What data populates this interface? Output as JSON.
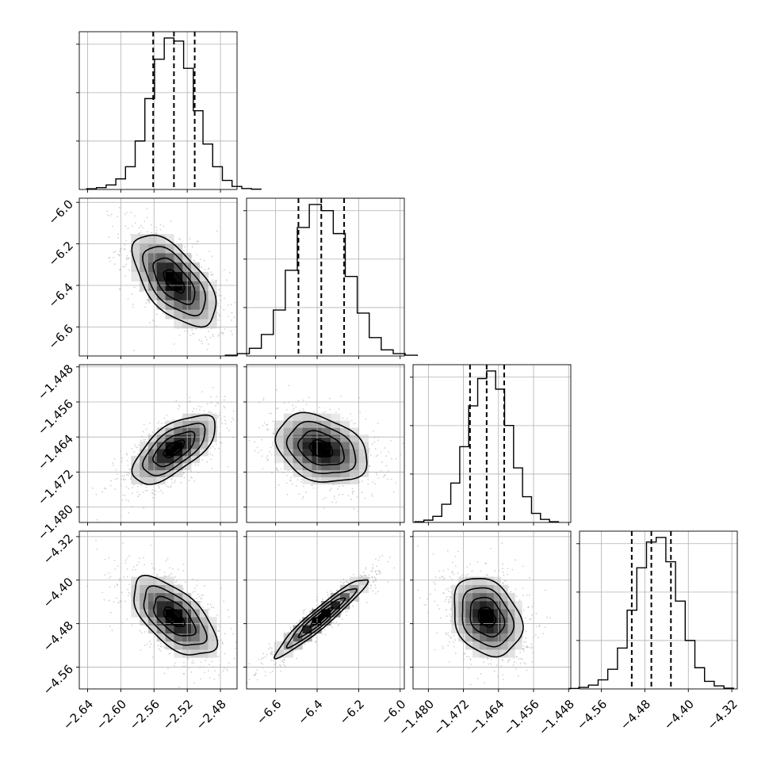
{
  "chart_data": {
    "type": "corner",
    "grid": true,
    "parameters": [
      {
        "range": [
          -2.65,
          -2.46
        ],
        "ticks": [
          -2.64,
          -2.6,
          -2.56,
          -2.52,
          -2.48
        ],
        "tick_labels": [
          "−2.64",
          "−2.60",
          "−2.56",
          "−2.52",
          "−2.48"
        ],
        "quantiles": [
          -2.561,
          -2.536,
          -2.511
        ],
        "hist_counts": [
          0.5,
          1.2,
          3,
          7,
          15,
          32,
          60,
          86,
          100,
          98,
          80,
          52,
          30,
          15,
          6,
          2,
          0.6,
          0.2
        ]
      },
      {
        "range": [
          -6.74,
          -5.98
        ],
        "ticks": [
          -6.6,
          -6.4,
          -6.2,
          -6.0
        ],
        "tick_labels": [
          "−6.6",
          "−6.4",
          "−6.2",
          "−6.0"
        ],
        "quantiles": [
          -6.49,
          -6.38,
          -6.27
        ],
        "hist_counts": [
          0.5,
          1.5,
          5,
          14,
          30,
          56,
          84,
          99,
          95,
          80,
          52,
          28,
          12,
          4,
          1.5,
          0.5
        ]
      },
      {
        "range": [
          -1.4835,
          -1.4475
        ],
        "ticks": [
          -1.48,
          -1.472,
          -1.464,
          -1.456,
          -1.448
        ],
        "tick_labels": [
          "−1.480",
          "−1.472",
          "−1.464",
          "−1.456",
          "−1.448"
        ],
        "quantiles": [
          -1.4705,
          -1.4667,
          -1.4627
        ],
        "hist_counts": [
          0.5,
          1.5,
          4,
          12,
          26,
          50,
          77,
          95,
          100,
          88,
          64,
          36,
          17,
          6,
          2,
          0.5
        ]
      },
      {
        "range": [
          -4.6,
          -4.31
        ],
        "ticks": [
          -4.56,
          -4.48,
          -4.4,
          -4.32
        ],
        "tick_labels": [
          "−4.56",
          "−4.48",
          "−4.40",
          "−4.32"
        ],
        "quantiles": [
          -4.504,
          -4.468,
          -4.432
        ],
        "hist_counts": [
          0.3,
          1,
          2.5,
          6,
          13,
          27,
          52,
          80,
          97,
          100,
          84,
          58,
          32,
          14,
          5,
          2,
          0.5
        ]
      }
    ],
    "pairs": [
      {
        "x": 0,
        "y": 1,
        "rho": -0.6
      },
      {
        "x": 0,
        "y": 2,
        "rho": 0.65
      },
      {
        "x": 1,
        "y": 2,
        "rho": -0.3
      },
      {
        "x": 0,
        "y": 3,
        "rho": -0.6
      },
      {
        "x": 1,
        "y": 3,
        "rho": 0.95
      },
      {
        "x": 2,
        "y": 3,
        "rho": -0.25
      }
    ]
  }
}
